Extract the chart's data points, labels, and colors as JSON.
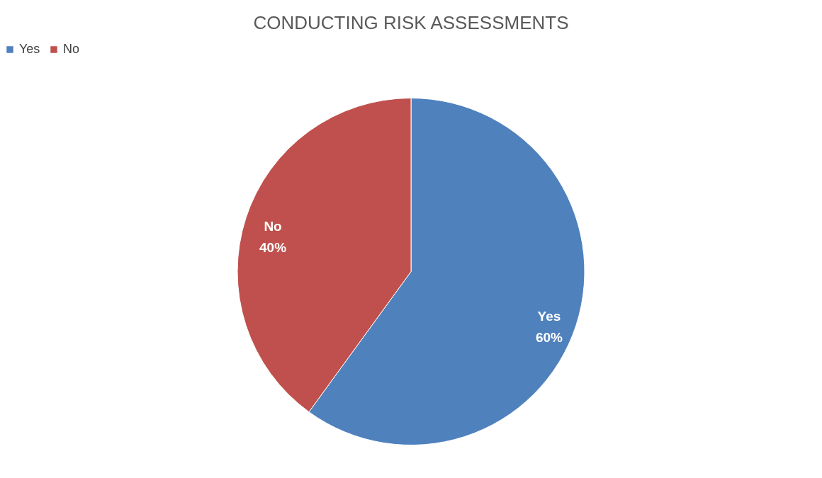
{
  "chart_data": {
    "type": "pie",
    "title": "CONDUCTING RISK ASSESSMENTS",
    "categories": [
      "Yes",
      "No"
    ],
    "values": [
      60,
      40
    ],
    "colors": [
      "#4f81bd",
      "#c0504d"
    ],
    "value_labels": [
      "60%",
      "40%"
    ],
    "legend": "top"
  }
}
